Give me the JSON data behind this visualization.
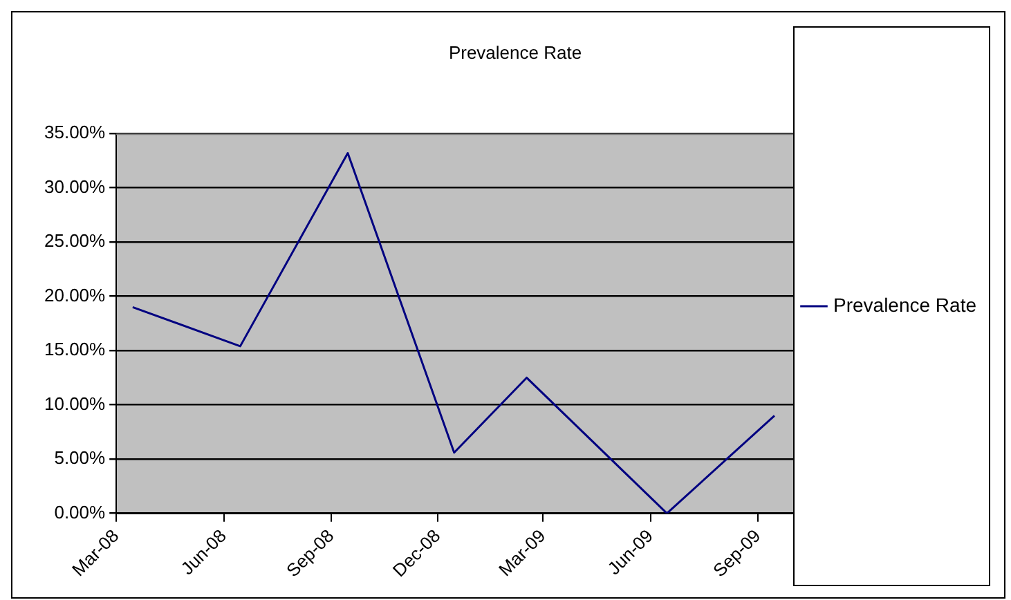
{
  "chart_data": {
    "type": "line",
    "title": "Prevalence Rate",
    "x": [
      "2008-03-15",
      "2008-06-15",
      "2008-09-15",
      "2008-12-15",
      "2009-02-15",
      "2009-06-15",
      "2009-09-15"
    ],
    "series": [
      {
        "name": "Prevalence Rate",
        "color": "#000080",
        "values": [
          19.0,
          15.4,
          33.2,
          5.6,
          12.5,
          0,
          9.0
        ]
      }
    ],
    "xlim": [
      "2008-03",
      "2009-10"
    ],
    "xticks": [
      {
        "value": "2008-03",
        "label": "Mar-08"
      },
      {
        "value": "2008-06",
        "label": "Jun-08"
      },
      {
        "value": "2008-09",
        "label": "Sep-08"
      },
      {
        "value": "2008-12",
        "label": "Dec-08"
      },
      {
        "value": "2009-03",
        "label": "Mar-09"
      },
      {
        "value": "2009-06",
        "label": "Jun-09"
      },
      {
        "value": "2009-09",
        "label": "Sep-09"
      }
    ],
    "ylim": [
      0,
      35
    ],
    "yticks": [
      {
        "value": 0,
        "label": "0.00%"
      },
      {
        "value": 5,
        "label": "5.00%"
      },
      {
        "value": 10,
        "label": "10.00%"
      },
      {
        "value": 15,
        "label": "15.00%"
      },
      {
        "value": 20,
        "label": "20.00%"
      },
      {
        "value": 25,
        "label": "25.00%"
      },
      {
        "value": 30,
        "label": "30.00%"
      },
      {
        "value": 35,
        "label": "35.00%"
      }
    ],
    "grid": "y",
    "legend": "right",
    "marker": "none",
    "line_style": "solid"
  }
}
